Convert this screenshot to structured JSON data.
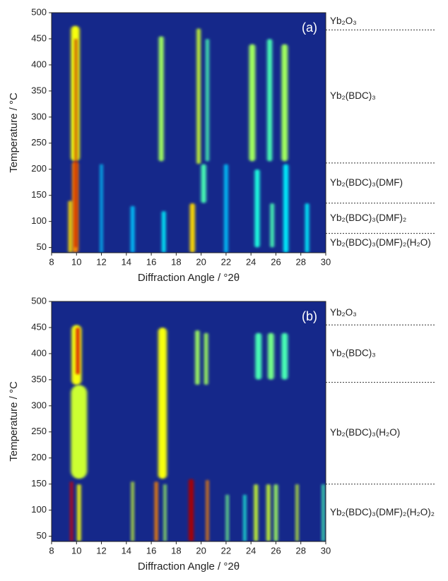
{
  "chart_data": [
    {
      "type": "heatmap",
      "panel_label": "(a)",
      "x_label": "Diffraction Angle / °2θ",
      "y_label": "Temperature / °C",
      "xlim": [
        8,
        30
      ],
      "xticks": [
        8,
        10,
        12,
        14,
        16,
        18,
        20,
        22,
        24,
        26,
        28,
        30
      ],
      "ylim": [
        40,
        500
      ],
      "yticks": [
        50,
        100,
        150,
        200,
        250,
        300,
        350,
        400,
        450,
        500
      ],
      "background": "#15288a",
      "boundaries": [
        467,
        212,
        135,
        77
      ],
      "phases": [
        "Yb₂O₃",
        "Yb₂(BDC)₃",
        "Yb₂(BDC)₃(DMF)",
        "Yb₂(BDC)₃(DMF)₂",
        "Yb₂(BDC)₃(DMF)₂(H₂O)"
      ],
      "peaks": [
        {
          "x": 9.9,
          "tmin": 215,
          "tmax": 475,
          "intensity": 0.55,
          "width": 0.7
        },
        {
          "x": 9.9,
          "tmin": 40,
          "tmax": 215,
          "intensity": 0.7,
          "width": 0.5
        },
        {
          "x": 9.5,
          "tmin": 40,
          "tmax": 140,
          "intensity": 0.6,
          "width": 0.3
        },
        {
          "x": 9.95,
          "tmin": 50,
          "tmax": 450,
          "intensity": 0.95,
          "width": 0.15
        },
        {
          "x": 16.8,
          "tmin": 215,
          "tmax": 455,
          "intensity": 0.45,
          "width": 0.4
        },
        {
          "x": 19.8,
          "tmin": 210,
          "tmax": 470,
          "intensity": 0.5,
          "width": 0.3
        },
        {
          "x": 20.5,
          "tmin": 215,
          "tmax": 450,
          "intensity": 0.35,
          "width": 0.25
        },
        {
          "x": 24.1,
          "tmin": 215,
          "tmax": 440,
          "intensity": 0.45,
          "width": 0.5
        },
        {
          "x": 25.5,
          "tmin": 215,
          "tmax": 450,
          "intensity": 0.35,
          "width": 0.4
        },
        {
          "x": 26.7,
          "tmin": 215,
          "tmax": 440,
          "intensity": 0.45,
          "width": 0.5
        },
        {
          "x": 19.3,
          "tmin": 40,
          "tmax": 135,
          "intensity": 0.6,
          "width": 0.4
        },
        {
          "x": 20.2,
          "tmin": 135,
          "tmax": 210,
          "intensity": 0.35,
          "width": 0.4
        },
        {
          "x": 24.5,
          "tmin": 50,
          "tmax": 200,
          "intensity": 0.3,
          "width": 0.4
        },
        {
          "x": 25.7,
          "tmin": 50,
          "tmax": 135,
          "intensity": 0.35,
          "width": 0.3
        },
        {
          "x": 17.0,
          "tmin": 40,
          "tmax": 120,
          "intensity": 0.25,
          "width": 0.3
        },
        {
          "x": 26.8,
          "tmin": 40,
          "tmax": 210,
          "intensity": 0.25,
          "width": 0.4
        },
        {
          "x": 22.0,
          "tmin": 40,
          "tmax": 210,
          "intensity": 0.2,
          "width": 0.3
        },
        {
          "x": 12.0,
          "tmin": 40,
          "tmax": 210,
          "intensity": 0.2,
          "width": 0.2
        },
        {
          "x": 28.5,
          "tmin": 40,
          "tmax": 135,
          "intensity": 0.25,
          "width": 0.3
        },
        {
          "x": 14.5,
          "tmin": 40,
          "tmax": 130,
          "intensity": 0.2,
          "width": 0.3
        }
      ]
    },
    {
      "type": "heatmap",
      "panel_label": "(b)",
      "x_label": "Diffraction Angle / °2θ",
      "y_label": "Temperature / °C",
      "xlim": [
        8,
        30
      ],
      "xticks": [
        8,
        10,
        12,
        14,
        16,
        18,
        20,
        22,
        24,
        26,
        28,
        30
      ],
      "ylim": [
        40,
        500
      ],
      "yticks": [
        50,
        100,
        150,
        200,
        250,
        300,
        350,
        400,
        450,
        500
      ],
      "background": "#15288a",
      "boundaries": [
        455,
        345,
        150
      ],
      "phases": [
        "Yb₂O₃",
        "Yb₂(BDC)₃",
        "Yb₂(BDC)₃(H₂O)",
        "Yb₂(BDC)₃(DMF)₂(H₂O)₂"
      ],
      "peaks": [
        {
          "x": 10.2,
          "tmin": 160,
          "tmax": 340,
          "intensity": 0.5,
          "width": 1.3
        },
        {
          "x": 10.0,
          "tmin": 340,
          "tmax": 455,
          "intensity": 0.55,
          "width": 0.8
        },
        {
          "x": 10.1,
          "tmin": 360,
          "tmax": 450,
          "intensity": 0.9,
          "width": 0.25
        },
        {
          "x": 10.2,
          "tmin": 40,
          "tmax": 150,
          "intensity": 0.55,
          "width": 0.3
        },
        {
          "x": 9.6,
          "tmin": 40,
          "tmax": 155,
          "intensity": 0.9,
          "width": 0.2
        },
        {
          "x": 16.9,
          "tmin": 160,
          "tmax": 450,
          "intensity": 0.55,
          "width": 0.7
        },
        {
          "x": 19.7,
          "tmin": 340,
          "tmax": 445,
          "intensity": 0.45,
          "width": 0.35
        },
        {
          "x": 20.4,
          "tmin": 340,
          "tmax": 440,
          "intensity": 0.45,
          "width": 0.3
        },
        {
          "x": 24.6,
          "tmin": 350,
          "tmax": 440,
          "intensity": 0.35,
          "width": 0.5
        },
        {
          "x": 25.6,
          "tmin": 350,
          "tmax": 440,
          "intensity": 0.4,
          "width": 0.5
        },
        {
          "x": 26.7,
          "tmin": 350,
          "tmax": 440,
          "intensity": 0.35,
          "width": 0.5
        },
        {
          "x": 14.5,
          "tmin": 40,
          "tmax": 155,
          "intensity": 0.5,
          "width": 0.2
        },
        {
          "x": 16.4,
          "tmin": 40,
          "tmax": 155,
          "intensity": 0.7,
          "width": 0.25
        },
        {
          "x": 17.1,
          "tmin": 40,
          "tmax": 150,
          "intensity": 0.45,
          "width": 0.2
        },
        {
          "x": 19.2,
          "tmin": 40,
          "tmax": 160,
          "intensity": 0.95,
          "width": 0.4
        },
        {
          "x": 20.5,
          "tmin": 40,
          "tmax": 158,
          "intensity": 0.7,
          "width": 0.2
        },
        {
          "x": 22.1,
          "tmin": 40,
          "tmax": 130,
          "intensity": 0.4,
          "width": 0.2
        },
        {
          "x": 24.4,
          "tmin": 40,
          "tmax": 150,
          "intensity": 0.5,
          "width": 0.3
        },
        {
          "x": 25.4,
          "tmin": 40,
          "tmax": 150,
          "intensity": 0.5,
          "width": 0.3
        },
        {
          "x": 26.0,
          "tmin": 40,
          "tmax": 150,
          "intensity": 0.45,
          "width": 0.3
        },
        {
          "x": 27.7,
          "tmin": 40,
          "tmax": 150,
          "intensity": 0.5,
          "width": 0.2
        },
        {
          "x": 29.8,
          "tmin": 40,
          "tmax": 150,
          "intensity": 0.35,
          "width": 0.2
        },
        {
          "x": 23.5,
          "tmin": 40,
          "tmax": 130,
          "intensity": 0.3,
          "width": 0.2
        }
      ]
    }
  ]
}
